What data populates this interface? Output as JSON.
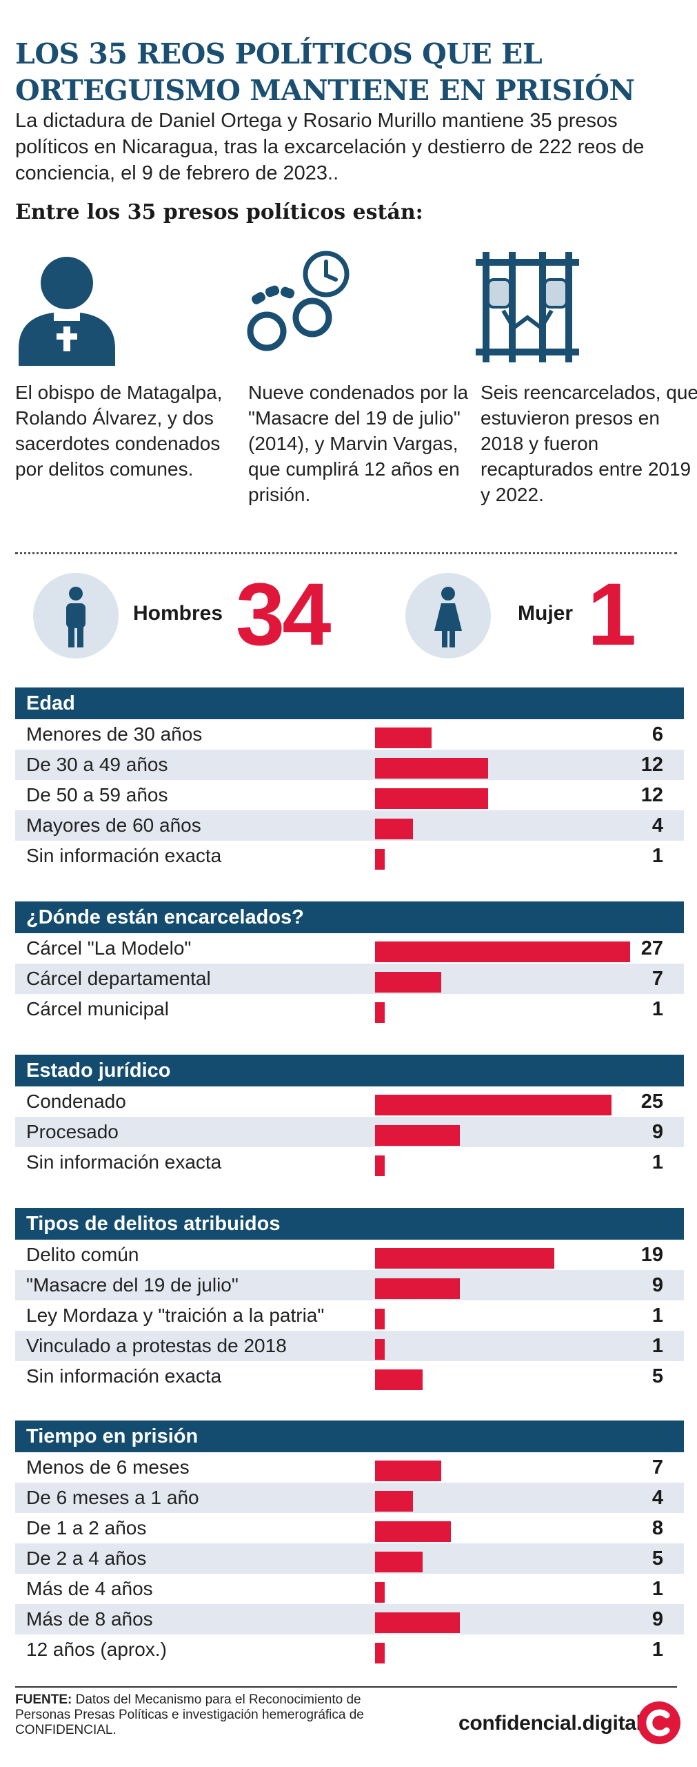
{
  "header": {
    "title": "LOS 35 REOS POLÍTICOS QUE EL ORTEGUISMO MANTIENE EN PRISIÓN",
    "subtitle": "La dictadura de Daniel Ortega y Rosario Murillo mantiene 35 presos políticos en Nicaragua, tras la excarcelación y destierro de 222 reos de conciencia, el 9 de febrero de 2023..",
    "lead": "Entre los 35 presos políticos están:"
  },
  "highlights": [
    {
      "icon": "bishop-icon",
      "text": "El obispo de Matagalpa, Rolando Álvarez, y dos sacerdotes condenados por delitos comunes."
    },
    {
      "icon": "handcuffs-clock-icon",
      "text": "Nueve condenados por la \"Masacre del 19 de julio\" (2014), y Marvin Vargas, que cumplirá 12 años en prisión."
    },
    {
      "icon": "prison-bars-icon",
      "text": "Seis reencarcelados, que estuvieron presos en 2018 y fueron recapturados entre 2019 y 2022."
    }
  ],
  "gender": {
    "men_label": "Hombres",
    "men_count": "34",
    "women_label": "Mujer",
    "women_count": "1"
  },
  "colors": {
    "accent": "#e0163a",
    "header_blue": "#134c6e",
    "title_blue": "#1b4f72",
    "row_alt": "#e3e8f0"
  },
  "chart_data": [
    {
      "type": "bar",
      "title": "Edad",
      "categories": [
        "Menores de 30 años",
        "De 30 a 49 años",
        "De 50 a 59 años",
        "Mayores de 60 años",
        "Sin información exacta"
      ],
      "values": [
        6,
        12,
        12,
        4,
        1
      ]
    },
    {
      "type": "bar",
      "title": "¿Dónde están encarcelados?",
      "categories": [
        "Cárcel \"La Modelo\"",
        "Cárcel departamental",
        "Cárcel municipal"
      ],
      "values": [
        27,
        7,
        1
      ]
    },
    {
      "type": "bar",
      "title": "Estado jurídico",
      "categories": [
        "Condenado",
        "Procesado",
        "Sin información exacta"
      ],
      "values": [
        25,
        9,
        1
      ]
    },
    {
      "type": "bar",
      "title": "Tipos de delitos atribuidos",
      "categories": [
        "Delito común",
        "\"Masacre del 19 de julio\"",
        "Ley Mordaza y \"traición a la patria\"",
        "Vinculado a protestas de 2018",
        "Sin información exacta"
      ],
      "values": [
        19,
        9,
        1,
        1,
        5
      ]
    },
    {
      "type": "bar",
      "title": "Tiempo en prisión",
      "categories": [
        "Menos de 6 meses",
        "De 6 meses a 1 año",
        "De 1 a 2 años",
        "De 2 a 4 años",
        "Más de 4 años",
        "Más de 8 años",
        "12 años (aprox.)"
      ],
      "values": [
        7,
        4,
        8,
        5,
        1,
        9,
        1
      ]
    }
  ],
  "footer": {
    "source_label": "FUENTE:",
    "source_text": "Datos del Mecanismo para el Reconocimiento de Personas Presas Políticas e investigación hemerográfica de CONFIDENCIAL.",
    "brand": "confidencial.digital"
  }
}
